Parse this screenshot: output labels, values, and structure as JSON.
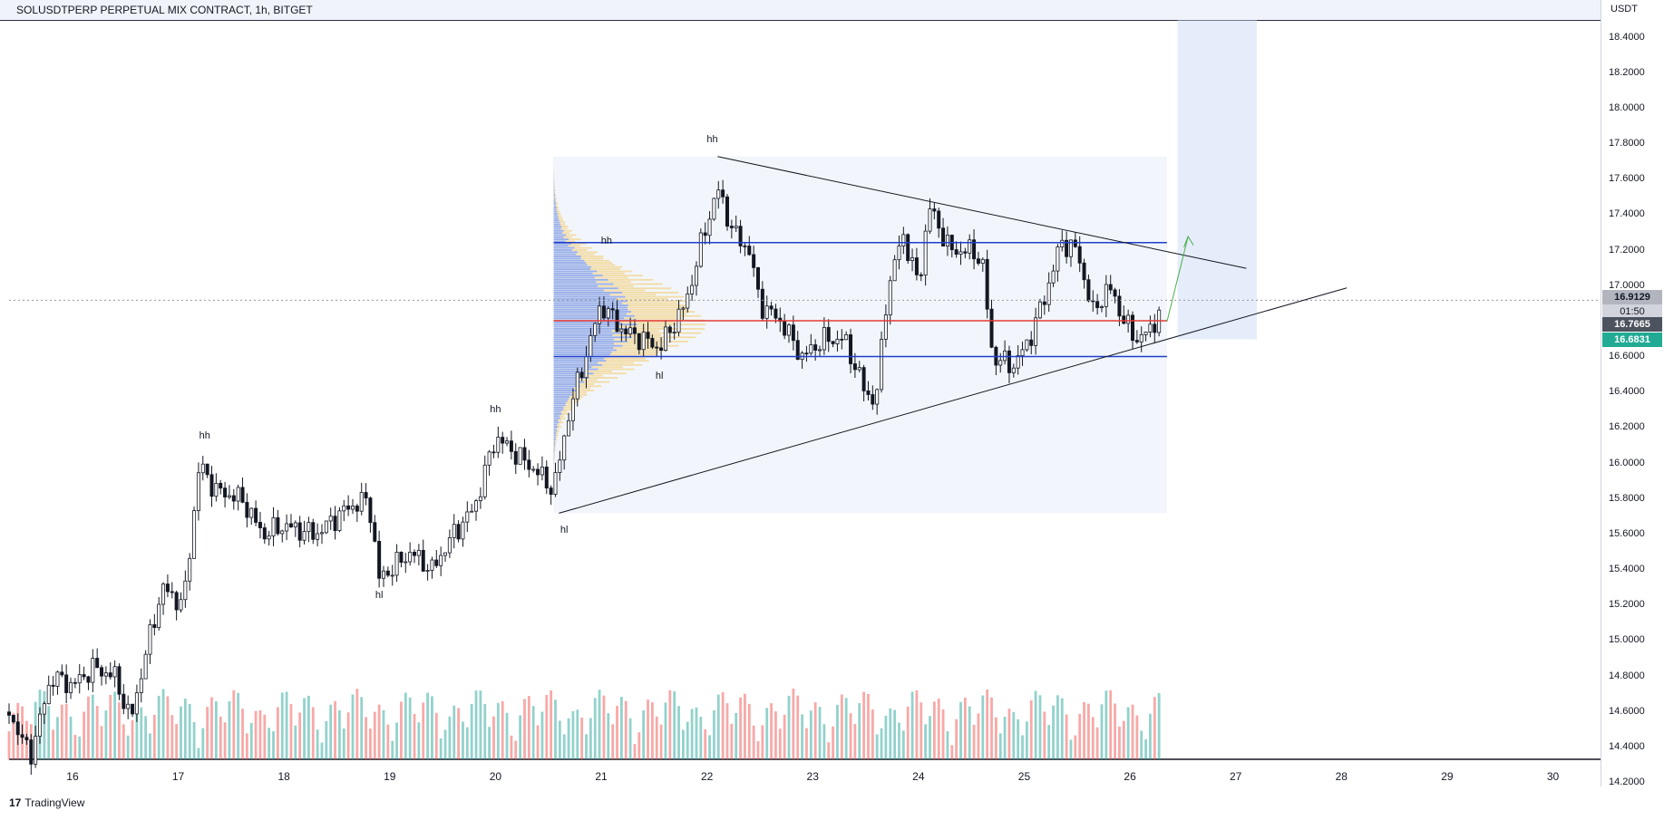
{
  "header": {
    "title": "SOLUSDTPERP PERPETUAL MIX CONTRACT, 1h, BITGET",
    "currency": "USDT"
  },
  "footer": {
    "brand": "TradingView"
  },
  "chart_data": {
    "type": "candlestick",
    "symbol": "SOLUSDTPERP",
    "exchange": "BITGET",
    "timeframe": "1h",
    "y_ticks": [
      "18.4000",
      "18.2000",
      "18.0000",
      "17.8000",
      "17.6000",
      "17.4000",
      "17.2000",
      "17.0000",
      "16.8000",
      "16.6000",
      "16.4000",
      "16.2000",
      "16.0000",
      "15.8000",
      "15.6000",
      "15.4000",
      "15.2000",
      "15.0000",
      "14.8000",
      "14.6000",
      "14.4000",
      "14.2000"
    ],
    "x_ticks": [
      "16",
      "17",
      "18",
      "19",
      "20",
      "21",
      "22",
      "23",
      "24",
      "25",
      "26",
      "27",
      "28",
      "29",
      "30"
    ],
    "ylim": [
      14.18,
      18.5
    ],
    "xlim": [
      15.4,
      30.45
    ],
    "price_labels": {
      "last": "16.9129",
      "countdown": "01:50",
      "level1": "16.7665",
      "level2": "16.6831"
    },
    "colors": {
      "up": "#26a69a",
      "down": "#131722",
      "vol_up": "#26a69a",
      "vol_down": "#ef5350",
      "blue_line": "#1e3fcc",
      "red_line": "#e53935"
    },
    "candle_anchors": [
      [
        15.4,
        14.6
      ],
      [
        15.6,
        14.35
      ],
      [
        15.8,
        14.8
      ],
      [
        16.0,
        14.75
      ],
      [
        16.2,
        14.85
      ],
      [
        16.4,
        14.8
      ],
      [
        16.55,
        14.55
      ],
      [
        16.7,
        14.95
      ],
      [
        16.85,
        15.3
      ],
      [
        17.05,
        15.2
      ],
      [
        17.2,
        16.0
      ],
      [
        17.35,
        15.85
      ],
      [
        17.6,
        15.8
      ],
      [
        17.8,
        15.6
      ],
      [
        18.0,
        15.65
      ],
      [
        18.3,
        15.6
      ],
      [
        18.6,
        15.75
      ],
      [
        18.8,
        15.8
      ],
      [
        18.9,
        15.35
      ],
      [
        19.2,
        15.5
      ],
      [
        19.4,
        15.4
      ],
      [
        19.6,
        15.6
      ],
      [
        19.8,
        15.75
      ],
      [
        20.0,
        16.15
      ],
      [
        20.2,
        16.05
      ],
      [
        20.4,
        15.95
      ],
      [
        20.55,
        15.85
      ],
      [
        20.7,
        16.3
      ],
      [
        20.85,
        16.6
      ],
      [
        21.0,
        16.9
      ],
      [
        21.2,
        16.75
      ],
      [
        21.4,
        16.7
      ],
      [
        21.55,
        16.65
      ],
      [
        21.8,
        16.9
      ],
      [
        21.95,
        17.25
      ],
      [
        22.1,
        17.55
      ],
      [
        22.25,
        17.3
      ],
      [
        22.4,
        17.2
      ],
      [
        22.5,
        16.9
      ],
      [
        22.7,
        16.8
      ],
      [
        22.9,
        16.6
      ],
      [
        23.1,
        16.7
      ],
      [
        23.3,
        16.7
      ],
      [
        23.5,
        16.4
      ],
      [
        23.6,
        16.35
      ],
      [
        23.7,
        16.95
      ],
      [
        23.85,
        17.3
      ],
      [
        24.0,
        17.0
      ],
      [
        24.1,
        17.45
      ],
      [
        24.3,
        17.2
      ],
      [
        24.5,
        17.2
      ],
      [
        24.6,
        17.15
      ],
      [
        24.7,
        16.6
      ],
      [
        24.9,
        16.55
      ],
      [
        25.05,
        16.7
      ],
      [
        25.2,
        16.95
      ],
      [
        25.35,
        17.25
      ],
      [
        25.5,
        17.2
      ],
      [
        25.65,
        16.85
      ],
      [
        25.8,
        17.0
      ],
      [
        25.95,
        16.8
      ],
      [
        26.05,
        16.7
      ],
      [
        26.2,
        16.75
      ],
      [
        26.3,
        16.9
      ]
    ],
    "annotations": [
      {
        "text": "hh",
        "x": 17.25,
        "y": 16.15
      },
      {
        "text": "hl",
        "x": 18.9,
        "y": 15.25
      },
      {
        "text": "hh",
        "x": 20.0,
        "y": 16.3
      },
      {
        "text": "hl",
        "x": 20.65,
        "y": 15.62
      },
      {
        "text": "hh",
        "x": 21.05,
        "y": 17.25
      },
      {
        "text": "hl",
        "x": 21.55,
        "y": 16.49
      },
      {
        "text": "hh",
        "x": 22.05,
        "y": 17.82
      }
    ],
    "trendlines": [
      {
        "x1": 22.1,
        "y1": 17.73,
        "x2": 27.1,
        "y2": 17.1,
        "color": "#131722"
      },
      {
        "x1": 20.6,
        "y1": 15.72,
        "x2": 28.05,
        "y2": 16.99,
        "color": "#131722"
      }
    ],
    "horizontal_lines": [
      {
        "y": 17.245,
        "x1": 20.55,
        "x2": 26.35,
        "color": "#1e3fcc"
      },
      {
        "y": 16.603,
        "x1": 20.55,
        "x2": 26.35,
        "color": "#1e3fcc"
      },
      {
        "y": 16.805,
        "x1": 20.55,
        "x2": 26.35,
        "color": "#e53935"
      },
      {
        "y": 16.92,
        "x1": 15.4,
        "x2": 30.45,
        "color": "#9598a1",
        "dashed": true
      }
    ],
    "range_box": {
      "x1": 20.55,
      "x2": 26.35,
      "y1": 15.72,
      "y2": 17.73
    },
    "projection_box": {
      "x1": 26.45,
      "x2": 27.2,
      "y1": 16.7,
      "y2": 18.5
    },
    "volume_profile_poc": 16.8
  }
}
